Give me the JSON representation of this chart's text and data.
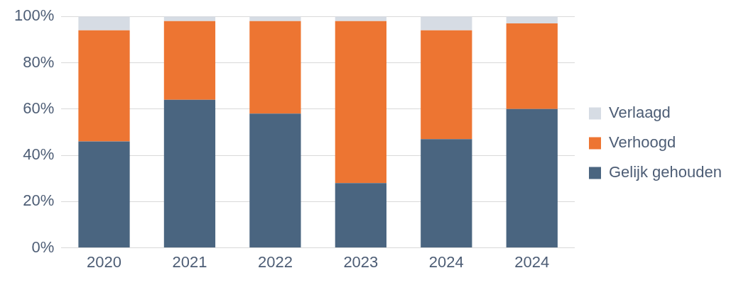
{
  "chart_data": {
    "type": "bar",
    "stacked": true,
    "categories": [
      "2020",
      "2021",
      "2022",
      "2023",
      "2024",
      "2024"
    ],
    "series": [
      {
        "name": "Gelijk gehouden",
        "color": "#4a6580",
        "values": [
          46,
          64,
          58,
          28,
          47,
          60
        ]
      },
      {
        "name": "Verhoogd",
        "color": "#ed7532",
        "values": [
          48,
          34,
          40,
          70,
          47,
          37
        ]
      },
      {
        "name": "Verlaagd",
        "color": "#d6dce4",
        "values": [
          6,
          2,
          2,
          2,
          6,
          3
        ]
      }
    ],
    "ylim": [
      0,
      100
    ],
    "yticks": [
      {
        "value": 0,
        "label": "0%"
      },
      {
        "value": 20,
        "label": "20%"
      },
      {
        "value": 40,
        "label": "40%"
      },
      {
        "value": 60,
        "label": "60%"
      },
      {
        "value": 80,
        "label": "80%"
      },
      {
        "value": 100,
        "label": "100%"
      }
    ],
    "grid": "y",
    "legend": "right"
  }
}
